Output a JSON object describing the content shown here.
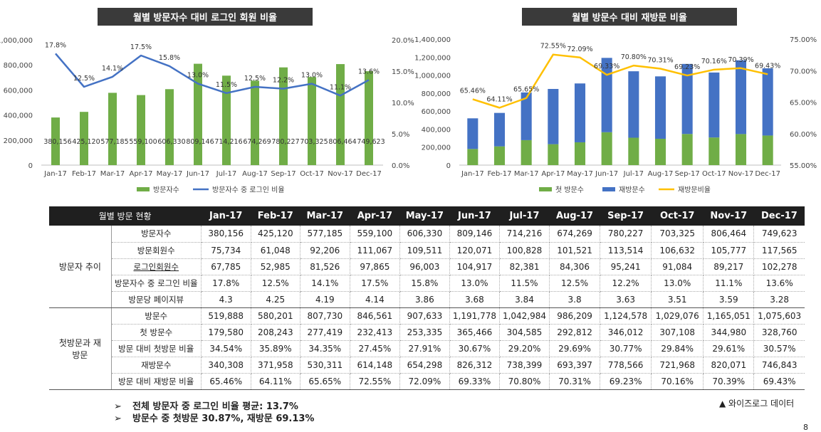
{
  "chart_data": [
    {
      "type": "bar+line",
      "title": "월별 방문자수 대비 로그인 회원 비율",
      "categories": [
        "Jan-17",
        "Feb-17",
        "Mar-17",
        "Apr-17",
        "May-17",
        "Jun-17",
        "Jul-17",
        "Aug-17",
        "Sep-17",
        "Oct-17",
        "Nov-17",
        "Dec-17"
      ],
      "series": [
        {
          "name": "방문자수",
          "kind": "bar",
          "color": "#70ad47",
          "values": [
            380156,
            425120,
            577185,
            559100,
            606330,
            809146,
            714216,
            674269,
            780227,
            703325,
            806464,
            749623
          ],
          "labels": [
            "380,156",
            "425,120",
            "577,185",
            "559,100",
            "606,330",
            "809,146",
            "714,216",
            "674,269",
            "780,227",
            "703,325",
            "806,464",
            "749,623"
          ]
        },
        {
          "name": "방문자수 중 로그인 비율",
          "kind": "line",
          "axis": "right",
          "color": "#4472c4",
          "values": [
            17.8,
            12.5,
            14.1,
            17.5,
            15.8,
            13.0,
            11.5,
            12.5,
            12.2,
            13.0,
            11.1,
            13.6
          ],
          "labels": [
            "17.8%",
            "12.5%",
            "14.1%",
            "17.5%",
            "15.8%",
            "13.0%",
            "11.5%",
            "12.5%",
            "12.2%",
            "13.0%",
            "11.1%",
            "13.6%"
          ]
        }
      ],
      "ylim": [
        0,
        1000000
      ],
      "yticks": [
        "0",
        "200,000",
        "400,000",
        "600,000",
        "800,000",
        "1,000,000"
      ],
      "y2lim": [
        0,
        20
      ],
      "y2ticks": [
        "0.0%",
        "5.0%",
        "10.0%",
        "15.0%",
        "20.0%"
      ],
      "legend": "bottom"
    },
    {
      "type": "stacked-bar+line",
      "title": "월별 방문수 대비 재방문 비율",
      "categories": [
        "Jan-17",
        "Feb-17",
        "Mar-17",
        "Apr-17",
        "May-17",
        "Jun-17",
        "Jul-17",
        "Aug-17",
        "Sep-17",
        "Oct-17",
        "Nov-17",
        "Dec-17"
      ],
      "series": [
        {
          "name": "첫 방문수",
          "kind": "bar",
          "color": "#70ad47",
          "values": [
            179580,
            208243,
            277419,
            232413,
            253335,
            365466,
            304585,
            292812,
            346012,
            307108,
            344980,
            328760
          ]
        },
        {
          "name": "재방문수",
          "kind": "bar",
          "color": "#4472c4",
          "values": [
            340308,
            371958,
            530311,
            614148,
            654298,
            826312,
            738399,
            693397,
            778566,
            721968,
            820071,
            746843
          ]
        },
        {
          "name": "재방문비율",
          "kind": "line",
          "axis": "right",
          "color": "#ffc000",
          "values": [
            65.46,
            64.11,
            65.65,
            72.55,
            72.09,
            69.33,
            70.8,
            70.31,
            69.23,
            70.16,
            70.39,
            69.43
          ],
          "labels": [
            "65.46%",
            "64.11%",
            "65.65%",
            "72.55%",
            "72.09%",
            "69.33%",
            "70.80%",
            "70.31%",
            "69.23%",
            "70.16%",
            "70.39%",
            "69.43%"
          ]
        }
      ],
      "ylim": [
        0,
        1400000
      ],
      "yticks": [
        "0",
        "200,000",
        "400,000",
        "600,000",
        "800,000",
        "1,000,000",
        "1,200,000",
        "1,400,000"
      ],
      "y2lim": [
        55,
        75
      ],
      "y2ticks": [
        "55.00%",
        "60.00%",
        "65.00%",
        "70.00%",
        "75.00%"
      ],
      "legend": "bottom"
    }
  ],
  "table": {
    "header_label": "월별 방문 현황",
    "months": [
      "Jan-17",
      "Feb-17",
      "Mar-17",
      "Apr-17",
      "May-17",
      "Jun-17",
      "Jul-17",
      "Aug-17",
      "Sep-17",
      "Oct-17",
      "Nov-17",
      "Dec-17"
    ],
    "groups": [
      {
        "label": "방문자 추이",
        "rows": [
          {
            "label": "방문자수",
            "values": [
              "380,156",
              "425,120",
              "577,185",
              "559,100",
              "606,330",
              "809,146",
              "714,216",
              "674,269",
              "780,227",
              "703,325",
              "806,464",
              "749,623"
            ]
          },
          {
            "label": "방문회원수",
            "values": [
              "75,734",
              "61,048",
              "92,206",
              "111,067",
              "109,511",
              "120,071",
              "100,828",
              "101,521",
              "113,514",
              "106,632",
              "105,777",
              "117,565"
            ]
          },
          {
            "label": "로그인회원수",
            "values": [
              "67,785",
              "52,985",
              "81,526",
              "97,865",
              "96,003",
              "104,917",
              "82,381",
              "84,306",
              "95,241",
              "91,084",
              "89,217",
              "102,278"
            ]
          },
          {
            "label": "방문자수 중 로그인 비율",
            "values": [
              "17.8%",
              "12.5%",
              "14.1%",
              "17.5%",
              "15.8%",
              "13.0%",
              "11.5%",
              "12.5%",
              "12.2%",
              "13.0%",
              "11.1%",
              "13.6%"
            ]
          },
          {
            "label": "방문당 페이지뷰",
            "values": [
              "4.3",
              "4.25",
              "4.19",
              "4.14",
              "3.86",
              "3.68",
              "3.84",
              "3.8",
              "3.63",
              "3.51",
              "3.59",
              "3.28"
            ]
          }
        ]
      },
      {
        "label": "첫방문과 재방문",
        "rows": [
          {
            "label": "방문수",
            "values": [
              "519,888",
              "580,201",
              "807,730",
              "846,561",
              "907,633",
              "1,191,778",
              "1,042,984",
              "986,209",
              "1,124,578",
              "1,029,076",
              "1,165,051",
              "1,075,603"
            ]
          },
          {
            "label": "첫 방문수",
            "values": [
              "179,580",
              "208,243",
              "277,419",
              "232,413",
              "253,335",
              "365,466",
              "304,585",
              "292,812",
              "346,012",
              "307,108",
              "344,980",
              "328,760"
            ]
          },
          {
            "label": "방문 대비 첫방문 비율",
            "values": [
              "34.54%",
              "35.89%",
              "34.35%",
              "27.45%",
              "27.91%",
              "30.67%",
              "29.20%",
              "29.69%",
              "30.77%",
              "29.84%",
              "29.61%",
              "30.57%"
            ]
          },
          {
            "label": "재방문수",
            "values": [
              "340,308",
              "371,958",
              "530,311",
              "614,148",
              "654,298",
              "826,312",
              "738,399",
              "693,397",
              "778,566",
              "721,968",
              "820,071",
              "746,843"
            ]
          },
          {
            "label": "방문 대비 재방문 비율",
            "values": [
              "65.46%",
              "64.11%",
              "65.65%",
              "72.55%",
              "72.09%",
              "69.33%",
              "70.80%",
              "70.31%",
              "69.23%",
              "70.16%",
              "70.39%",
              "69.43%"
            ]
          }
        ]
      }
    ]
  },
  "notes": {
    "bullet": "➢",
    "line1": "전체 방문자 중 로그인 비율 평균: 13.7%",
    "line2": "방문수 중 첫방문 30.87%, 재방문 69.13%"
  },
  "source": "▲ 와이즈로그 데이터",
  "page_number": "8"
}
